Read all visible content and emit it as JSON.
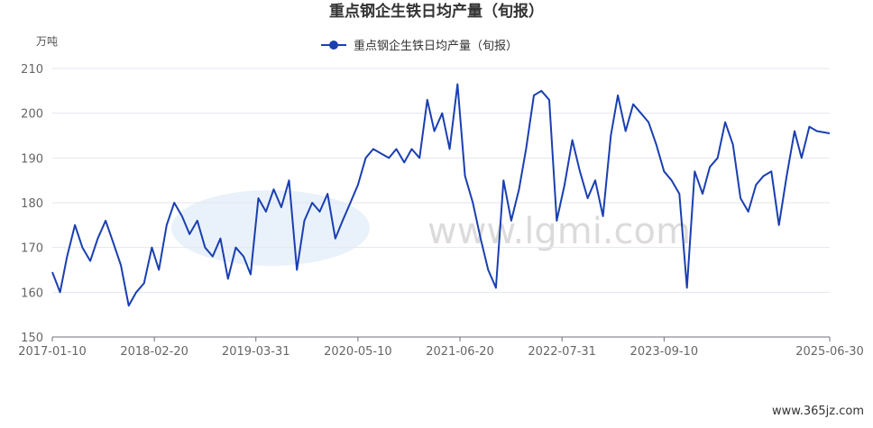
{
  "chart_data": {
    "type": "line",
    "title": "重点钢企生铁日均产量（旬报）",
    "y_label": "万吨",
    "watermark": "www.lgmi.com",
    "footer": "www.365jz.com",
    "x": [
      "2017-01-10",
      "2017-02-10",
      "2017-03-10",
      "2017-04-10",
      "2017-05-10",
      "2017-06-10",
      "2017-07-10",
      "2017-08-10",
      "2017-09-10",
      "2017-10-10",
      "2017-11-10",
      "2017-12-10",
      "2018-01-10",
      "2018-02-10",
      "2018-03-10",
      "2018-04-10",
      "2018-05-10",
      "2018-06-10",
      "2018-07-10",
      "2018-08-10",
      "2018-09-10",
      "2018-10-10",
      "2018-11-10",
      "2018-12-10",
      "2019-01-10",
      "2019-02-10",
      "2019-03-10",
      "2019-04-10",
      "2019-05-10",
      "2019-06-10",
      "2019-07-10",
      "2019-08-10",
      "2019-09-10",
      "2019-10-10",
      "2019-11-10",
      "2019-12-10",
      "2020-01-10",
      "2020-02-10",
      "2020-03-10",
      "2020-04-10",
      "2020-05-10",
      "2020-06-10",
      "2020-07-10",
      "2020-08-10",
      "2020-09-10",
      "2020-10-10",
      "2020-11-10",
      "2020-12-10",
      "2021-01-10",
      "2021-02-10",
      "2021-03-10",
      "2021-04-10",
      "2021-05-10",
      "2021-06-10",
      "2021-07-10",
      "2021-08-10",
      "2021-09-10",
      "2021-10-10",
      "2021-11-10",
      "2021-12-10",
      "2022-01-10",
      "2022-02-10",
      "2022-03-10",
      "2022-04-10",
      "2022-05-10",
      "2022-06-10",
      "2022-07-10",
      "2022-08-10",
      "2022-09-10",
      "2022-10-10",
      "2022-11-10",
      "2022-12-10",
      "2023-01-10",
      "2023-02-10",
      "2023-03-10",
      "2023-04-10",
      "2023-05-10",
      "2023-06-10",
      "2023-07-10",
      "2023-08-10",
      "2023-09-10",
      "2023-10-10",
      "2023-11-10",
      "2023-12-10",
      "2024-01-10",
      "2024-02-10",
      "2024-03-10",
      "2024-04-10",
      "2024-05-10",
      "2024-06-10",
      "2024-07-10",
      "2024-08-10",
      "2024-09-10",
      "2024-10-10",
      "2024-11-10",
      "2024-12-10",
      "2025-01-10",
      "2025-02-10",
      "2025-03-10",
      "2025-04-10",
      "2025-05-10",
      "2025-06-30"
    ],
    "series": [
      {
        "name": "重点钢企生铁日均产量（旬报）",
        "color": "#1a3fb0",
        "values": [
          164.5,
          160,
          168,
          175,
          170,
          167,
          172,
          176,
          171,
          166,
          157,
          160,
          162,
          170,
          165,
          175,
          180,
          177,
          173,
          176,
          170,
          168,
          172,
          163,
          170,
          168,
          164,
          181,
          178,
          183,
          179,
          185,
          165,
          176,
          180,
          178,
          182,
          172,
          176,
          180,
          184,
          190,
          192,
          191,
          190,
          192,
          189,
          192,
          190,
          203,
          196,
          200,
          192,
          206.5,
          186,
          180,
          172,
          165,
          161,
          185,
          176,
          183,
          192,
          204,
          205,
          203,
          176,
          184,
          194,
          187,
          181,
          185,
          177,
          195,
          204,
          196,
          202,
          200,
          198,
          193,
          187,
          185,
          182,
          161,
          187,
          182,
          188,
          190,
          198,
          193,
          181,
          178,
          184,
          186,
          187,
          175,
          186,
          196,
          190,
          197,
          196,
          195.5
        ]
      }
    ],
    "xlim": [
      "2017-01-10",
      "2025-06-30"
    ],
    "xticks": [
      "2017-01-10",
      "2018-02-20",
      "2019-03-31",
      "2020-05-10",
      "2021-06-20",
      "2022-07-31",
      "2023-09-10",
      "2025-06-30"
    ],
    "ylim": [
      150,
      210
    ],
    "yticks": [
      150,
      160,
      170,
      180,
      190,
      200,
      210
    ],
    "grid": true,
    "legend": "top"
  }
}
